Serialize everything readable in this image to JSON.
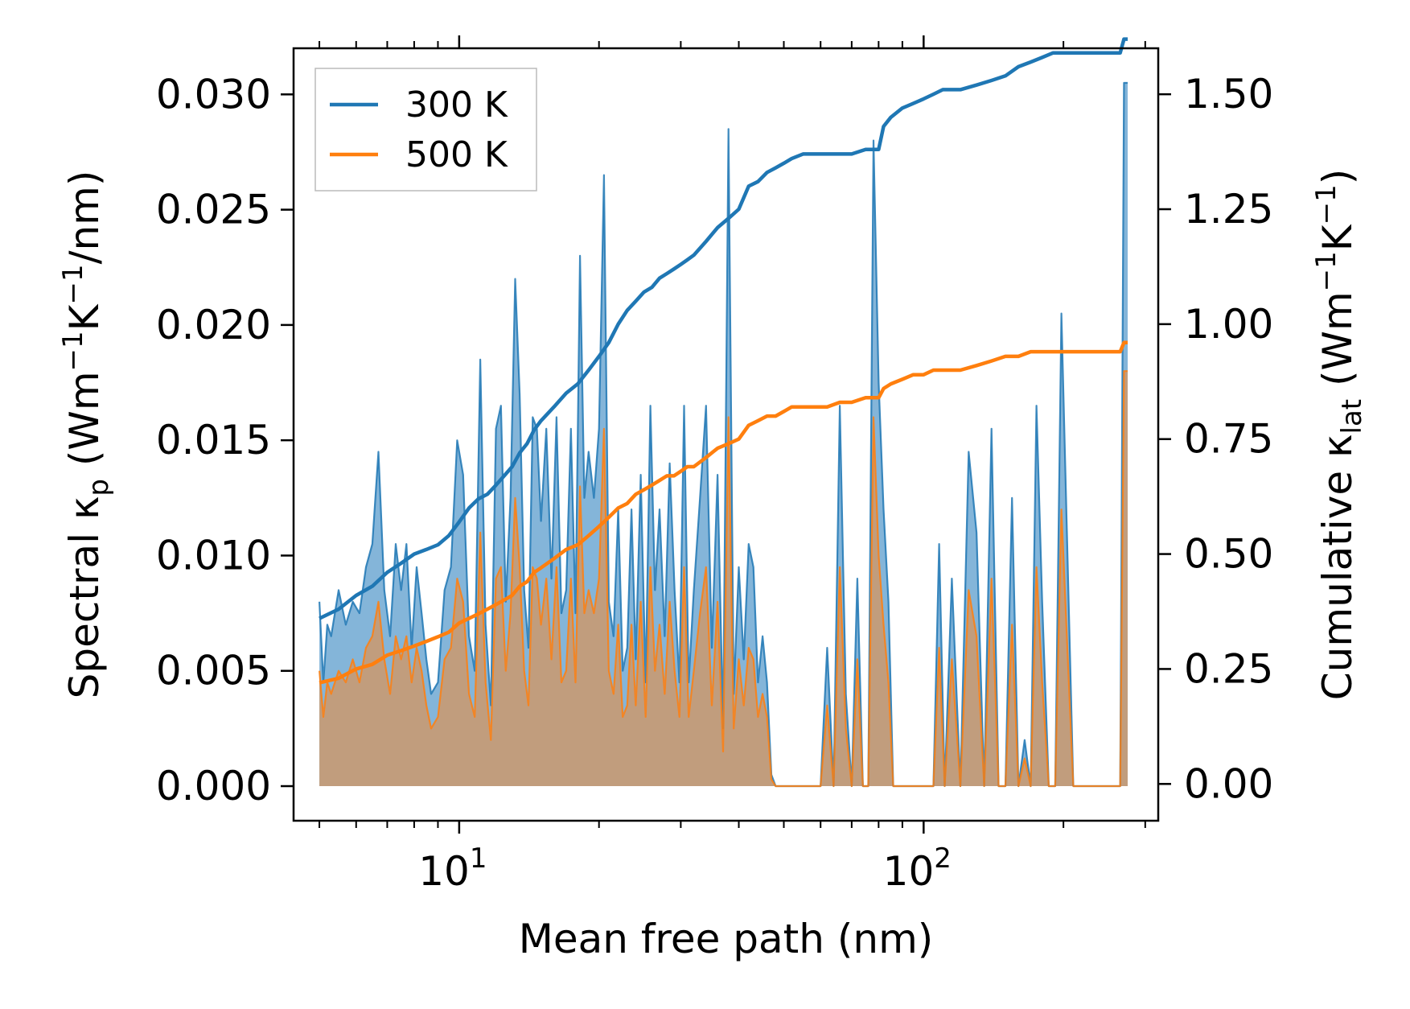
{
  "chart_data": {
    "type": "line",
    "xscale": "log",
    "xlim": [
      4.4,
      320
    ],
    "ylim": [
      -0.0015,
      0.032
    ],
    "y2lim": [
      -0.08,
      1.6
    ],
    "xlabel": "Mean free path (nm)",
    "ylabel_parts": {
      "pre": "Spectral κ",
      "sub": "p",
      "mid": " (Wm",
      "sup1": "−1",
      "k": "K",
      "sup2": "−1",
      "post": "/nm)"
    },
    "y2label_parts": {
      "pre": "Cumulative κ",
      "sub": "lat",
      "mid": " (Wm",
      "sup1": "−1",
      "k": "K",
      "sup2": "−1",
      "post": ")"
    },
    "xticks": [
      {
        "value": 10,
        "base": "10",
        "exp": "1"
      },
      {
        "value": 100,
        "base": "10",
        "exp": "2"
      }
    ],
    "yticks": [
      {
        "value": 0.0,
        "label": "0.000"
      },
      {
        "value": 0.005,
        "label": "0.005"
      },
      {
        "value": 0.01,
        "label": "0.010"
      },
      {
        "value": 0.015,
        "label": "0.015"
      },
      {
        "value": 0.02,
        "label": "0.020"
      },
      {
        "value": 0.025,
        "label": "0.025"
      },
      {
        "value": 0.03,
        "label": "0.030"
      }
    ],
    "y2ticks": [
      {
        "value": 0.0,
        "label": "0.00"
      },
      {
        "value": 0.25,
        "label": "0.25"
      },
      {
        "value": 0.5,
        "label": "0.50"
      },
      {
        "value": 0.75,
        "label": "0.75"
      },
      {
        "value": 1.0,
        "label": "1.00"
      },
      {
        "value": 1.25,
        "label": "1.25"
      },
      {
        "value": 1.5,
        "label": "1.50"
      }
    ],
    "legend": {
      "position": "upper-left",
      "entries": [
        "300 K",
        "500 K"
      ]
    },
    "series": [
      {
        "name": "300 K",
        "color": "#1f77b4",
        "fill_color": "#5b9ccc",
        "spectral": {
          "x": [
            5.0,
            5.1,
            5.2,
            5.3,
            5.5,
            5.7,
            5.9,
            6.1,
            6.3,
            6.5,
            6.7,
            6.9,
            7.1,
            7.3,
            7.5,
            7.7,
            7.9,
            8.1,
            8.3,
            8.5,
            8.7,
            9.0,
            9.3,
            9.6,
            9.9,
            10.2,
            10.5,
            10.8,
            11.1,
            11.4,
            11.7,
            12.0,
            12.3,
            12.6,
            12.9,
            13.2,
            13.5,
            13.8,
            14.1,
            14.4,
            14.7,
            15.0,
            15.4,
            15.8,
            16.2,
            16.6,
            17.0,
            17.4,
            17.8,
            18.2,
            18.6,
            19.0,
            19.5,
            20.0,
            20.5,
            21.0,
            21.5,
            22.0,
            22.5,
            23.0,
            23.5,
            24.0,
            24.6,
            25.2,
            25.8,
            26.4,
            27.0,
            27.7,
            28.4,
            29.1,
            29.8,
            30.5,
            31.2,
            32.0,
            33.0,
            34.0,
            35.0,
            36.0,
            37.0,
            38.0,
            39.0,
            40.0,
            41.0,
            42.0,
            43.0,
            44.0,
            45.0,
            46.0,
            47.0,
            48.0,
            50.0,
            52.0,
            54.0,
            56.0,
            58.0,
            60.0,
            62.0,
            64.0,
            66.0,
            68.0,
            70.0,
            72.0,
            74.0,
            76.0,
            78.0,
            80.0,
            82.0,
            84.0,
            86.0,
            88.0,
            90.0,
            93.0,
            96.0,
            99.0,
            102.0,
            105.0,
            108.0,
            111.0,
            115.0,
            120.0,
            125.0,
            130.0,
            135.0,
            140.0,
            145.0,
            150.0,
            155.0,
            160.0,
            165.0,
            170.0,
            175.0,
            180.0,
            186.0,
            192.0,
            198.0,
            210.0,
            230.0,
            250.0,
            265.0,
            270.0,
            275.0
          ],
          "y": [
            0.008,
            0.0045,
            0.007,
            0.0065,
            0.0085,
            0.007,
            0.008,
            0.0075,
            0.0095,
            0.0105,
            0.0145,
            0.0085,
            0.0065,
            0.0105,
            0.0085,
            0.0105,
            0.006,
            0.0095,
            0.0075,
            0.0055,
            0.004,
            0.0045,
            0.0085,
            0.0095,
            0.015,
            0.0135,
            0.0065,
            0.005,
            0.0185,
            0.007,
            0.0035,
            0.0155,
            0.0165,
            0.008,
            0.0125,
            0.022,
            0.017,
            0.0085,
            0.006,
            0.016,
            0.0155,
            0.0115,
            0.0155,
            0.009,
            0.016,
            0.0075,
            0.0085,
            0.0155,
            0.0075,
            0.023,
            0.0125,
            0.0145,
            0.0125,
            0.0155,
            0.0265,
            0.008,
            0.0065,
            0.012,
            0.005,
            0.006,
            0.012,
            0.0055,
            0.0135,
            0.0045,
            0.0165,
            0.0085,
            0.012,
            0.0065,
            0.014,
            0.0085,
            0.0045,
            0.0165,
            0.0045,
            0.0085,
            0.0125,
            0.0165,
            0.006,
            0.0135,
            0.0025,
            0.0285,
            0.004,
            0.0095,
            0.0055,
            0.0105,
            0.0095,
            0.0045,
            0.0065,
            0.0045,
            0.0005,
            0.0,
            0.0,
            0.0,
            0.0,
            0.0,
            0.0,
            0.0,
            0.006,
            0.0,
            0.0165,
            0.004,
            0.0,
            0.009,
            0.0,
            0.0,
            0.028,
            0.0175,
            0.012,
            0.008,
            0.0,
            0.0,
            0.0,
            0.0,
            0.0,
            0.0,
            0.0,
            0.0,
            0.0105,
            0.0,
            0.009,
            0.0,
            0.0145,
            0.011,
            0.0,
            0.0155,
            0.0,
            0.0,
            0.0125,
            0.0,
            0.002,
            0.0,
            0.0165,
            0.008,
            0.0,
            0.0,
            0.0205,
            0.0,
            0.0,
            0.0,
            0.0,
            0.0305,
            0.0305
          ]
        },
        "cumulative": {
          "x": [
            5.0,
            5.5,
            6.0,
            6.5,
            7.0,
            7.5,
            8.0,
            8.5,
            9.0,
            9.5,
            10.0,
            10.5,
            11.0,
            11.5,
            12.0,
            12.5,
            13.0,
            13.5,
            14.0,
            14.5,
            15.0,
            16.0,
            17.0,
            18.0,
            19.0,
            20.0,
            21.0,
            22.0,
            23.0,
            24.0,
            25.0,
            26.0,
            27.0,
            28.0,
            29.0,
            30.0,
            31.0,
            32.0,
            34.0,
            36.0,
            38.0,
            40.0,
            42.0,
            44.0,
            46.0,
            48.0,
            50.0,
            52.0,
            55.0,
            58.0,
            62.0,
            66.0,
            70.0,
            75.0,
            80.0,
            82.0,
            85.0,
            90.0,
            95.0,
            100.0,
            105.0,
            110.0,
            120.0,
            130.0,
            140.0,
            150.0,
            160.0,
            170.0,
            180.0,
            190.0,
            200.0,
            250.0,
            265.0,
            270.0,
            275.0
          ],
          "y": [
            0.36,
            0.38,
            0.41,
            0.43,
            0.46,
            0.48,
            0.5,
            0.51,
            0.52,
            0.54,
            0.57,
            0.6,
            0.62,
            0.63,
            0.65,
            0.67,
            0.69,
            0.72,
            0.74,
            0.77,
            0.79,
            0.82,
            0.85,
            0.87,
            0.9,
            0.93,
            0.96,
            1.0,
            1.03,
            1.05,
            1.07,
            1.08,
            1.1,
            1.11,
            1.12,
            1.13,
            1.14,
            1.15,
            1.18,
            1.21,
            1.23,
            1.25,
            1.3,
            1.31,
            1.33,
            1.34,
            1.35,
            1.36,
            1.37,
            1.37,
            1.37,
            1.37,
            1.37,
            1.38,
            1.38,
            1.43,
            1.45,
            1.47,
            1.48,
            1.49,
            1.5,
            1.51,
            1.51,
            1.52,
            1.53,
            1.54,
            1.56,
            1.57,
            1.58,
            1.59,
            1.59,
            1.59,
            1.59,
            1.62,
            1.62
          ]
        }
      },
      {
        "name": "500 K",
        "color": "#ff7f0e",
        "fill_color": "#c89a72",
        "spectral": {
          "x": [
            5.0,
            5.1,
            5.2,
            5.3,
            5.5,
            5.7,
            5.9,
            6.1,
            6.3,
            6.5,
            6.7,
            6.9,
            7.1,
            7.3,
            7.5,
            7.7,
            7.9,
            8.1,
            8.3,
            8.5,
            8.7,
            9.0,
            9.3,
            9.6,
            9.9,
            10.2,
            10.5,
            10.8,
            11.1,
            11.4,
            11.7,
            12.0,
            12.3,
            12.6,
            12.9,
            13.2,
            13.5,
            13.8,
            14.1,
            14.4,
            14.7,
            15.0,
            15.4,
            15.8,
            16.2,
            16.6,
            17.0,
            17.4,
            17.8,
            18.2,
            18.6,
            19.0,
            19.5,
            20.0,
            20.5,
            21.0,
            21.5,
            22.0,
            22.5,
            23.0,
            23.5,
            24.0,
            24.6,
            25.2,
            25.8,
            26.4,
            27.0,
            27.7,
            28.4,
            29.1,
            29.8,
            30.5,
            31.2,
            32.0,
            33.0,
            34.0,
            35.0,
            36.0,
            37.0,
            38.0,
            39.0,
            40.0,
            41.0,
            42.0,
            43.0,
            44.0,
            45.0,
            46.0,
            47.0,
            48.0,
            50.0,
            52.0,
            54.0,
            56.0,
            58.0,
            60.0,
            62.0,
            64.0,
            66.0,
            68.0,
            70.0,
            72.0,
            74.0,
            76.0,
            78.0,
            80.0,
            82.0,
            84.0,
            86.0,
            88.0,
            90.0,
            93.0,
            96.0,
            99.0,
            102.0,
            105.0,
            108.0,
            111.0,
            115.0,
            120.0,
            125.0,
            130.0,
            135.0,
            140.0,
            145.0,
            150.0,
            155.0,
            160.0,
            165.0,
            170.0,
            175.0,
            180.0,
            186.0,
            192.0,
            198.0,
            210.0,
            230.0,
            250.0,
            265.0,
            270.0,
            275.0
          ],
          "y": [
            0.005,
            0.003,
            0.0045,
            0.004,
            0.005,
            0.0045,
            0.0055,
            0.0045,
            0.006,
            0.0065,
            0.008,
            0.0055,
            0.004,
            0.0065,
            0.0055,
            0.0065,
            0.0045,
            0.006,
            0.005,
            0.0035,
            0.0025,
            0.003,
            0.0055,
            0.006,
            0.009,
            0.008,
            0.004,
            0.003,
            0.011,
            0.0045,
            0.002,
            0.009,
            0.0095,
            0.005,
            0.0075,
            0.0125,
            0.0095,
            0.005,
            0.0035,
            0.0095,
            0.009,
            0.007,
            0.009,
            0.0055,
            0.0095,
            0.0045,
            0.005,
            0.009,
            0.0045,
            0.013,
            0.0075,
            0.0085,
            0.0075,
            0.009,
            0.0155,
            0.005,
            0.004,
            0.007,
            0.003,
            0.0035,
            0.007,
            0.0035,
            0.008,
            0.003,
            0.0095,
            0.005,
            0.007,
            0.004,
            0.008,
            0.005,
            0.003,
            0.0095,
            0.003,
            0.005,
            0.0075,
            0.0095,
            0.0035,
            0.008,
            0.0015,
            0.016,
            0.0025,
            0.0055,
            0.0035,
            0.006,
            0.0055,
            0.003,
            0.004,
            0.003,
            0.0003,
            0.0,
            0.0,
            0.0,
            0.0,
            0.0,
            0.0,
            0.0,
            0.0035,
            0.0,
            0.0095,
            0.0025,
            0.0,
            0.0055,
            0.0,
            0.0,
            0.016,
            0.01,
            0.007,
            0.0045,
            0.0,
            0.0,
            0.0,
            0.0,
            0.0,
            0.0,
            0.0,
            0.0,
            0.006,
            0.0,
            0.0055,
            0.0,
            0.0085,
            0.0065,
            0.0,
            0.009,
            0.0,
            0.0,
            0.007,
            0.0,
            0.0012,
            0.0,
            0.0095,
            0.0045,
            0.0,
            0.0,
            0.012,
            0.0,
            0.0,
            0.0,
            0.0,
            0.018,
            0.018
          ]
        },
        "cumulative": {
          "x": [
            5.0,
            5.5,
            6.0,
            6.5,
            7.0,
            7.5,
            8.0,
            8.5,
            9.0,
            9.5,
            10.0,
            10.5,
            11.0,
            11.5,
            12.0,
            12.5,
            13.0,
            13.5,
            14.0,
            14.5,
            15.0,
            16.0,
            17.0,
            18.0,
            19.0,
            20.0,
            21.0,
            22.0,
            23.0,
            24.0,
            25.0,
            26.0,
            27.0,
            28.0,
            29.0,
            30.0,
            31.0,
            32.0,
            34.0,
            36.0,
            38.0,
            40.0,
            42.0,
            44.0,
            46.0,
            48.0,
            50.0,
            52.0,
            55.0,
            58.0,
            62.0,
            66.0,
            70.0,
            75.0,
            80.0,
            82.0,
            85.0,
            90.0,
            95.0,
            100.0,
            105.0,
            110.0,
            120.0,
            130.0,
            140.0,
            150.0,
            160.0,
            170.0,
            180.0,
            190.0,
            200.0,
            250.0,
            265.0,
            270.0,
            275.0
          ],
          "y": [
            0.22,
            0.23,
            0.25,
            0.26,
            0.28,
            0.29,
            0.3,
            0.31,
            0.32,
            0.33,
            0.35,
            0.36,
            0.37,
            0.38,
            0.39,
            0.4,
            0.41,
            0.43,
            0.44,
            0.46,
            0.47,
            0.49,
            0.51,
            0.52,
            0.54,
            0.56,
            0.58,
            0.6,
            0.61,
            0.63,
            0.64,
            0.65,
            0.66,
            0.67,
            0.67,
            0.68,
            0.69,
            0.69,
            0.71,
            0.73,
            0.74,
            0.75,
            0.78,
            0.79,
            0.8,
            0.8,
            0.81,
            0.82,
            0.82,
            0.82,
            0.82,
            0.83,
            0.83,
            0.84,
            0.84,
            0.86,
            0.87,
            0.88,
            0.89,
            0.89,
            0.9,
            0.9,
            0.9,
            0.91,
            0.92,
            0.93,
            0.93,
            0.94,
            0.94,
            0.94,
            0.94,
            0.94,
            0.94,
            0.96,
            0.96
          ]
        }
      }
    ]
  }
}
